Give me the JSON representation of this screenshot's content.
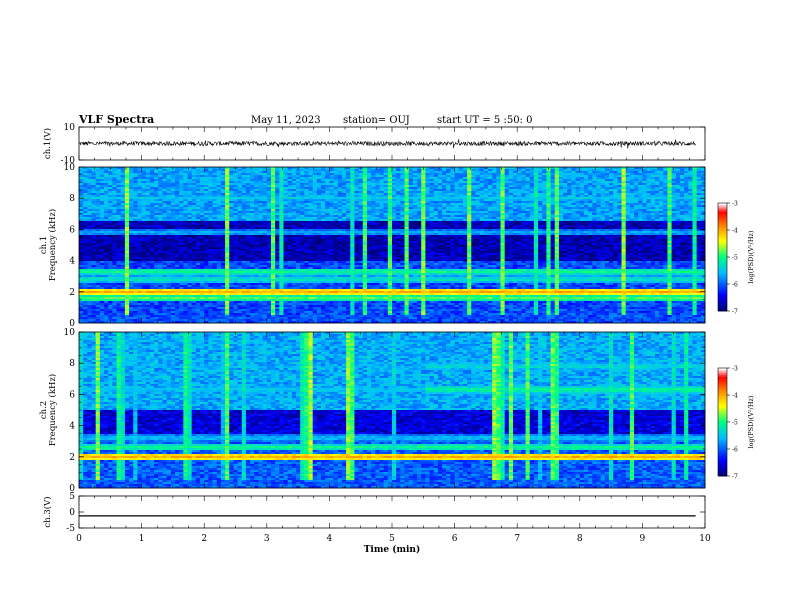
{
  "header": {
    "title": "VLF Spectra",
    "date": "May 11, 2023",
    "station": "station= OUJ",
    "start": "start  UT =   5 :50: 0"
  },
  "chart_data": {
    "type": "heatmap",
    "x": {
      "label": "Time  (min)",
      "range": [
        0,
        10
      ],
      "ticks": [
        "0",
        "1",
        "2",
        "3",
        "4",
        "5",
        "6",
        "7",
        "8",
        "9",
        "10"
      ]
    },
    "panels": [
      {
        "id": "ch1-waveform",
        "type": "line",
        "ylabel": "ch.1(V)",
        "ylim": [
          -10,
          10
        ],
        "yticks": [
          "10",
          "-10"
        ],
        "baseline": 0
      },
      {
        "id": "ch1-spectrogram",
        "type": "heatmap",
        "ylabel": "ch.1\nFrequency  (kHz)",
        "ylim": [
          0,
          10
        ],
        "yticks": [
          "0",
          "2",
          "4",
          "6",
          "8",
          "10"
        ],
        "colorbar": {
          "label": "log(PSD)(V²/Hz)",
          "range": [
            -7,
            -3
          ],
          "ticks": [
            "-3",
            "-4",
            "-5",
            "-6",
            "-7"
          ]
        },
        "bands": [
          {
            "f": 2.0,
            "level": -4.0
          },
          {
            "f": 1.6,
            "level": -4.8
          },
          {
            "f": 2.8,
            "level": -5.2
          },
          {
            "f": 3.3,
            "level": -5.0
          },
          {
            "f": 5.8,
            "level": -5.6
          },
          {
            "f": 8.0,
            "level": -5.5
          },
          {
            "f": 0.3,
            "level": -6.2
          }
        ]
      },
      {
        "id": "ch2-spectrogram",
        "type": "heatmap",
        "ylabel": "ch.2\nFrequency  (kHz)",
        "ylim": [
          0,
          10
        ],
        "yticks": [
          "0",
          "2",
          "4",
          "6",
          "8",
          "10"
        ],
        "colorbar": {
          "label": "log(PSD)(V²/Hz)",
          "range": [
            -7,
            -3
          ],
          "ticks": [
            "-3",
            "-4",
            "-5",
            "-6",
            "-7"
          ]
        },
        "bands": [
          {
            "f": 2.0,
            "level": -4.0
          },
          {
            "f": 2.6,
            "level": -5.0
          },
          {
            "f": 3.2,
            "level": -5.5
          },
          {
            "f": 6.3,
            "level": -5.0
          },
          {
            "f": 7.8,
            "level": -5.3
          },
          {
            "f": 0.5,
            "level": -6.2
          }
        ]
      },
      {
        "id": "ch3-waveform",
        "type": "line",
        "ylabel": "ch.3(V)",
        "ylim": [
          -5,
          5
        ],
        "yticks": [
          "5",
          "0",
          "-5"
        ],
        "baseline": -1.2
      }
    ],
    "grid": false,
    "colormap": [
      "#00007a",
      "#0000ff",
      "#00bfff",
      "#00ff80",
      "#ffff00",
      "#ff7f00",
      "#ff0000",
      "#ffffff"
    ]
  }
}
